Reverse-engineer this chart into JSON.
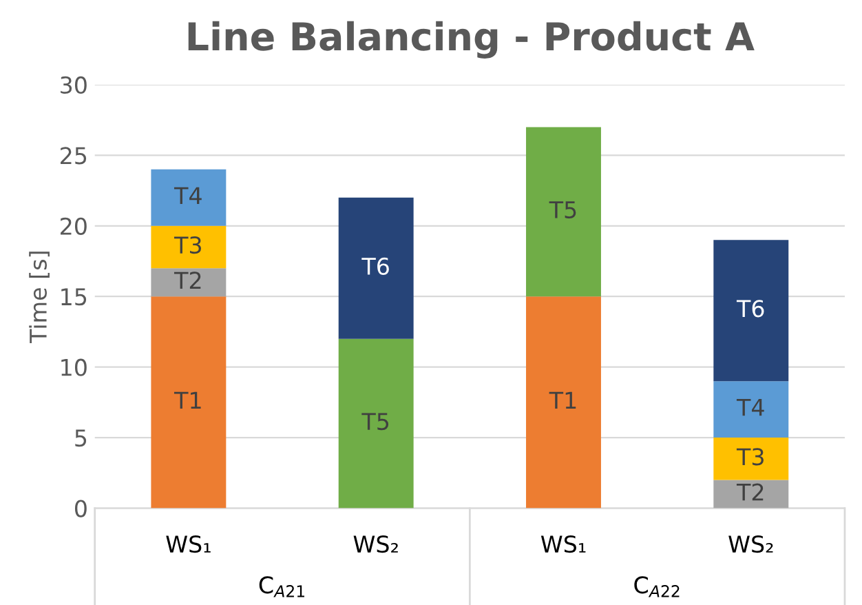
{
  "chart_data": {
    "type": "bar",
    "title": "Line Balancing - Product A",
    "ylabel": "Time [s]",
    "categories": [
      "WS₁",
      "WS₂",
      "WS₁",
      "WS₂"
    ],
    "annotations": [
      "C$_{A21}$",
      "C$_{A22}$"
    ],
    "stacked": true,
    "ylim": [
      0,
      30
    ],
    "yticks": [
      0,
      5,
      10,
      15,
      20,
      25,
      30
    ],
    "grid": "y",
    "legend": false,
    "series": [
      {
        "name": "T1",
        "color": "#ed7d31",
        "values": [
          15,
          null,
          15,
          null
        ]
      },
      {
        "name": "T2",
        "color": "#a5a5a5",
        "values": [
          2,
          null,
          null,
          2
        ]
      },
      {
        "name": "T3",
        "color": "#ffc000",
        "values": [
          3,
          null,
          null,
          3
        ]
      },
      {
        "name": "T4",
        "color": "#5b9bd5",
        "values": [
          4,
          null,
          null,
          4
        ]
      },
      {
        "name": "T5",
        "color": "#70ad47",
        "values": [
          null,
          12,
          12,
          null
        ]
      },
      {
        "name": "T6",
        "color": "#264478",
        "values": [
          null,
          10,
          null,
          10
        ]
      }
    ]
  }
}
